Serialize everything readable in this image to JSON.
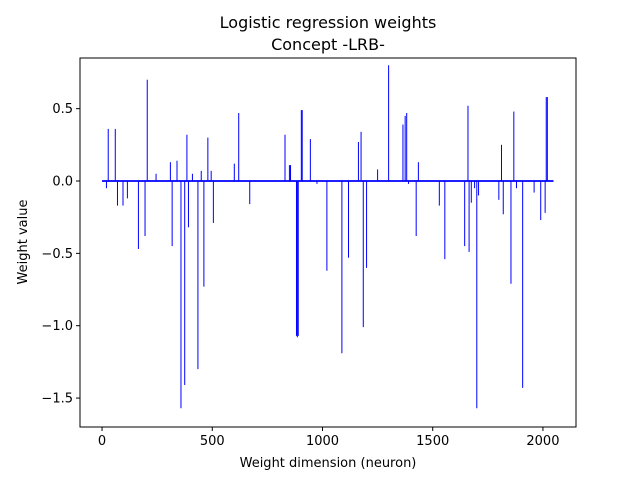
{
  "chart_data": {
    "type": "bar",
    "title": [
      "Logistic regression weights",
      "Concept -LRB-"
    ],
    "xlabel": "Weight dimension (neuron)",
    "ylabel": "Weight value",
    "xlim": [
      -100,
      2150
    ],
    "ylim": [
      -1.7,
      0.85
    ],
    "xticks": [
      0,
      500,
      1000,
      1500,
      2000
    ],
    "yticks": [
      -1.5,
      -1.0,
      -0.5,
      0.0,
      0.5
    ],
    "ytick_labels": [
      "−1.5",
      "−1.0",
      "−0.5",
      "0.0",
      "0.5"
    ],
    "grid": false,
    "color": "#0000ff",
    "x_range": [
      0,
      2048
    ],
    "series": [
      {
        "x": [
          20,
          28,
          60,
          70,
          95,
          115,
          165,
          195,
          205,
          245,
          310,
          318,
          340,
          358,
          375,
          385,
          392,
          410,
          435,
          450,
          462,
          480,
          495,
          505,
          600,
          620,
          670,
          830,
          850,
          855,
          882,
          886,
          890,
          904,
          908,
          945,
          975,
          1020,
          1088,
          1118,
          1163,
          1175,
          1185,
          1200,
          1250,
          1300,
          1365,
          1375,
          1382,
          1390,
          1425,
          1435,
          1530,
          1555,
          1645,
          1660,
          1665,
          1675,
          1690,
          1700,
          1708,
          1800,
          1812,
          1820,
          1855,
          1868,
          1880,
          1908,
          1960,
          1990,
          2010,
          2015,
          2020
        ],
        "values": [
          -0.05,
          0.36,
          0.36,
          -0.17,
          -0.17,
          -0.12,
          -0.47,
          -0.38,
          0.7,
          0.05,
          0.13,
          -0.45,
          0.14,
          -1.57,
          -1.41,
          0.32,
          -0.32,
          0.05,
          -1.3,
          0.07,
          -0.73,
          0.3,
          0.07,
          -0.29,
          0.12,
          0.47,
          -0.16,
          0.32,
          0.11,
          0.11,
          -1.07,
          -1.08,
          -1.07,
          0.49,
          0.49,
          0.29,
          -0.02,
          -0.62,
          -1.19,
          -0.53,
          0.27,
          0.34,
          -1.01,
          -0.6,
          0.08,
          0.8,
          0.39,
          0.45,
          0.47,
          -0.02,
          -0.38,
          0.13,
          -0.17,
          -0.54,
          -0.45,
          0.52,
          -0.49,
          -0.15,
          -0.05,
          -1.57,
          -0.1,
          -0.13,
          0.25,
          -0.23,
          -0.71,
          0.48,
          -0.05,
          -1.43,
          -0.08,
          -0.27,
          -0.22,
          0.58,
          0.58
        ]
      }
    ]
  }
}
